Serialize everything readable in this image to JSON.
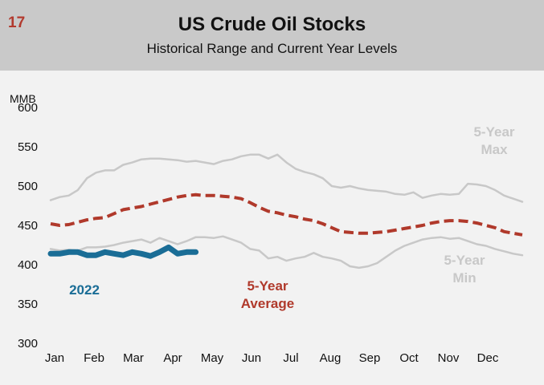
{
  "slide_number": "17",
  "chart_data": {
    "type": "line",
    "title": "US Crude Oil Stocks",
    "subtitle": "Historical Range and Current Year Levels",
    "ylabel": "MMB",
    "ylim": [
      300,
      600
    ],
    "yticks": [
      300,
      350,
      400,
      450,
      500,
      550,
      600
    ],
    "xlim": [
      0,
      52
    ],
    "categories": [
      "Jan",
      "Feb",
      "Mar",
      "Apr",
      "May",
      "Jun",
      "Jul",
      "Aug",
      "Sep",
      "Oct",
      "Nov",
      "Dec"
    ],
    "series": [
      {
        "name": "5-Year Max",
        "label_lines": [
          "5-Year",
          "Max"
        ],
        "style": "solid",
        "color": "#c8c8c8",
        "x": [
          0,
          1,
          2,
          3,
          4,
          5,
          6,
          7,
          8,
          9,
          10,
          11,
          12,
          13,
          14,
          15,
          16,
          17,
          18,
          19,
          20,
          21,
          22,
          23,
          24,
          25,
          26,
          27,
          28,
          29,
          30,
          31,
          32,
          33,
          34,
          35,
          36,
          37,
          38,
          39,
          40,
          41,
          42,
          43,
          44,
          45,
          46,
          47,
          48,
          49,
          50,
          51,
          52
        ],
        "values": [
          482,
          486,
          488,
          495,
          510,
          517,
          520,
          520,
          527,
          530,
          534,
          535,
          535,
          534,
          533,
          531,
          532,
          530,
          528,
          532,
          534,
          538,
          540,
          540,
          535,
          540,
          530,
          522,
          518,
          515,
          510,
          500,
          498,
          500,
          497,
          495,
          494,
          493,
          490,
          489,
          492,
          485,
          488,
          490,
          489,
          490,
          503,
          502,
          500,
          495,
          488,
          484,
          480
        ]
      },
      {
        "name": "5-Year Average",
        "label_lines": [
          "5-Year",
          "Average"
        ],
        "style": "dashed",
        "color": "#b0392b",
        "x": [
          0,
          1,
          2,
          3,
          4,
          5,
          6,
          7,
          8,
          9,
          10,
          11,
          12,
          13,
          14,
          15,
          16,
          17,
          18,
          19,
          20,
          21,
          22,
          23,
          24,
          25,
          26,
          27,
          28,
          29,
          30,
          31,
          32,
          33,
          34,
          35,
          36,
          37,
          38,
          39,
          40,
          41,
          42,
          43,
          44,
          45,
          46,
          47,
          48,
          49,
          50,
          51,
          52
        ],
        "values": [
          452,
          450,
          451,
          454,
          457,
          459,
          460,
          465,
          470,
          472,
          474,
          477,
          480,
          483,
          486,
          488,
          489,
          488,
          488,
          487,
          486,
          484,
          479,
          473,
          468,
          466,
          463,
          461,
          458,
          456,
          452,
          447,
          442,
          441,
          440,
          440,
          441,
          442,
          444,
          446,
          448,
          450,
          453,
          455,
          456,
          456,
          455,
          453,
          450,
          447,
          442,
          440,
          438
        ]
      },
      {
        "name": "5-Year Min",
        "label_lines": [
          "5-Year",
          "Min"
        ],
        "style": "solid",
        "color": "#c8c8c8",
        "x": [
          0,
          1,
          2,
          3,
          4,
          5,
          6,
          7,
          8,
          9,
          10,
          11,
          12,
          13,
          14,
          15,
          16,
          17,
          18,
          19,
          20,
          21,
          22,
          23,
          24,
          25,
          26,
          27,
          28,
          29,
          30,
          31,
          32,
          33,
          34,
          35,
          36,
          37,
          38,
          39,
          40,
          41,
          42,
          43,
          44,
          45,
          46,
          47,
          48,
          49,
          50,
          51,
          52
        ],
        "values": [
          420,
          418,
          419,
          418,
          422,
          422,
          423,
          425,
          428,
          430,
          432,
          428,
          434,
          430,
          426,
          430,
          435,
          435,
          434,
          436,
          432,
          428,
          420,
          418,
          408,
          410,
          405,
          408,
          410,
          415,
          410,
          408,
          405,
          398,
          396,
          398,
          402,
          410,
          418,
          424,
          428,
          432,
          434,
          435,
          433,
          434,
          430,
          426,
          424,
          420,
          417,
          414,
          412
        ]
      },
      {
        "name": "2022",
        "label_lines": [
          "2022"
        ],
        "style": "bold",
        "color": "#1a6d96",
        "x": [
          0,
          1,
          2,
          3,
          4,
          5,
          6,
          7,
          8,
          9,
          10,
          11,
          12,
          13,
          14,
          15,
          16
        ],
        "values": [
          414,
          414,
          416,
          416,
          412,
          412,
          416,
          414,
          412,
          416,
          414,
          411,
          416,
          422,
          414,
          416,
          416
        ]
      }
    ]
  }
}
